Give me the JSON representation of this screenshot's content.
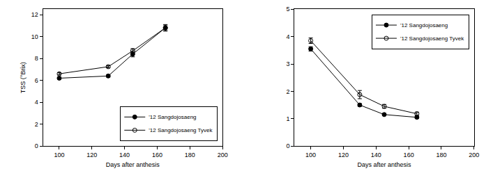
{
  "chart_data": [
    {
      "type": "line",
      "xlabel": "Days after anthesis",
      "ylabel": "TSS (°Brix)",
      "xlim": [
        90,
        200
      ],
      "xticks": [
        100,
        120,
        140,
        160,
        180,
        200
      ],
      "ylim": [
        0,
        12.5
      ],
      "yticks": [
        0,
        2,
        4,
        6,
        8,
        10,
        12
      ],
      "legend": "lower right",
      "series": [
        {
          "name": "'12 Sangdojosaeng",
          "color": "#000000",
          "marker": "filled circle",
          "x": [
            100,
            130,
            145,
            165
          ],
          "values": [
            6.2,
            6.4,
            8.4,
            10.8
          ],
          "errors": [
            0.1,
            0.1,
            0.25,
            0.3
          ]
        },
        {
          "name": "'12 Sangdojosaeng Tyvek",
          "color": "#000000",
          "marker": "open circle",
          "x": [
            100,
            130,
            145,
            165
          ],
          "values": [
            6.6,
            7.25,
            8.7,
            10.8
          ],
          "errors": [
            0.1,
            0.1,
            0.2,
            0.25
          ]
        }
      ]
    },
    {
      "type": "line",
      "xlabel": "Days after anthesis",
      "xlim": [
        90,
        200
      ],
      "xticks": [
        100,
        120,
        140,
        160,
        180,
        200
      ],
      "ylim": [
        0,
        5
      ],
      "yticks": [
        0,
        1,
        2,
        3,
        4,
        5
      ],
      "legend": "upper right",
      "series": [
        {
          "name": "'12 Sangdojosaeng",
          "color": "#000000",
          "marker": "filled circle",
          "x": [
            100,
            130,
            145,
            165
          ],
          "values": [
            3.55,
            1.5,
            1.15,
            1.05
          ],
          "errors": [
            0.08,
            0.05,
            0.04,
            0.04
          ]
        },
        {
          "name": "'12 Sangdojosaeng Tyvek",
          "color": "#000000",
          "marker": "open circle",
          "x": [
            100,
            130,
            145,
            165
          ],
          "values": [
            3.85,
            1.88,
            1.45,
            1.18
          ],
          "errors": [
            0.1,
            0.15,
            0.07,
            0.06
          ]
        }
      ]
    }
  ]
}
